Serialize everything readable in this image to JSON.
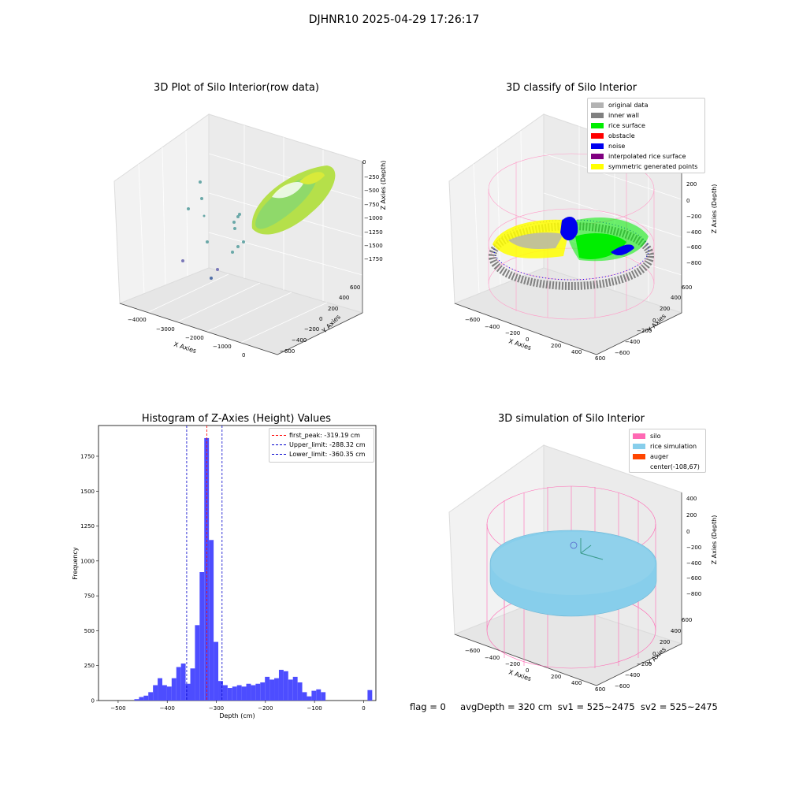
{
  "suptitle": "DJHNR10 2025-04-29 17:26:17",
  "footer": {
    "flag": "flag = 0",
    "avg": "avgDepth = 320 cm",
    "sv1": "sv1 = 525~2475",
    "sv2": "sv2 = 525~2475"
  },
  "chart_data": [
    {
      "type": "scatter",
      "title": "3D Plot of Silo Interior(row data)",
      "xlabel": "X Axies",
      "ylabel": "Y Axies",
      "zlabel": "Z Axies (Depth)",
      "x_ticks": [
        "−4000",
        "−3000",
        "−2000",
        "−1000",
        "0"
      ],
      "y_ticks": [
        "−600",
        "−400",
        "−200",
        "0",
        "200",
        "400",
        "600"
      ],
      "z_ticks": [
        "0",
        "−250",
        "−500",
        "−750",
        "−1000",
        "−1250",
        "−1500",
        "−1750"
      ],
      "colors": {
        "surface": "#b5e04a",
        "outliers": "#6aa8a8"
      }
    },
    {
      "type": "scatter",
      "title": "3D classify of Silo Interior",
      "xlabel": "X Axies",
      "ylabel": "Y Axies",
      "zlabel": "Z Axies (Depth)",
      "x_ticks": [
        "−600",
        "−400",
        "−200",
        "0",
        "200",
        "400",
        "600"
      ],
      "y_ticks": [
        "−600",
        "−400",
        "−200",
        "0",
        "200",
        "400",
        "600"
      ],
      "z_ticks": [
        "400",
        "200",
        "0",
        "−200",
        "−400",
        "−600",
        "−800"
      ],
      "legend_position": "top-right",
      "legend": [
        {
          "label": "original data",
          "color": "#b3b3b3"
        },
        {
          "label": "inner wall",
          "color": "#808080"
        },
        {
          "label": "rice surface",
          "color": "#00ee00"
        },
        {
          "label": "obstacle",
          "color": "#ff0000"
        },
        {
          "label": "noise",
          "color": "#0000ee"
        },
        {
          "label": "interpolated rice surface",
          "color": "#800080"
        },
        {
          "label": "symmetric generated points",
          "color": "#ffff00"
        }
      ]
    },
    {
      "type": "bar",
      "title": "Histogram of Z-Axies (Height) Values",
      "xlabel": "Depth (cm)",
      "ylabel": "Frequency",
      "xlim": [
        -540,
        25
      ],
      "ylim": [
        0,
        1970
      ],
      "x_ticks": [
        -500,
        -400,
        -300,
        -200,
        -100,
        0
      ],
      "y_ticks": [
        0,
        250,
        500,
        750,
        1000,
        1250,
        1500,
        1750
      ],
      "bin_width": 9.5,
      "bin_start": -467,
      "values": [
        10,
        25,
        35,
        60,
        110,
        160,
        110,
        100,
        160,
        240,
        265,
        120,
        230,
        540,
        920,
        1880,
        1150,
        420,
        140,
        110,
        90,
        100,
        110,
        100,
        120,
        110,
        120,
        130,
        170,
        150,
        160,
        220,
        210,
        150,
        170,
        130,
        60,
        30,
        70,
        80,
        60,
        0,
        0,
        0,
        0,
        0,
        0,
        0,
        0,
        0,
        75
      ],
      "bar_color": "#4d4dff",
      "legend_position": "top-right",
      "lines": [
        {
          "label": "first_peak: -319.19 cm",
          "x": -319.19,
          "color": "#ff0000"
        },
        {
          "label": "Upper_limit: -288.32 cm",
          "x": -288.32,
          "color": "#0000cc"
        },
        {
          "label": "Lower_limit: -360.35 cm",
          "x": -360.35,
          "color": "#0000cc"
        }
      ]
    },
    {
      "type": "scatter",
      "title": "3D simulation of Silo Interior",
      "xlabel": "X Axies",
      "ylabel": "Y Axies",
      "zlabel": "Z Axies (Depth)",
      "x_ticks": [
        "−600",
        "−400",
        "−200",
        "0",
        "200",
        "400",
        "600"
      ],
      "y_ticks": [
        "−600",
        "−400",
        "−200",
        "0",
        "200",
        "400",
        "600"
      ],
      "z_ticks": [
        "400",
        "200",
        "0",
        "−200",
        "−400",
        "−600",
        "−800"
      ],
      "legend_position": "top-right",
      "legend": [
        {
          "label": "silo",
          "color": "#ff69b4"
        },
        {
          "label": "rice simulation",
          "color": "#87ceeb"
        },
        {
          "label": "auger",
          "color": "#ff4500"
        },
        {
          "label": "center(-108,67)",
          "color": ""
        }
      ]
    }
  ]
}
